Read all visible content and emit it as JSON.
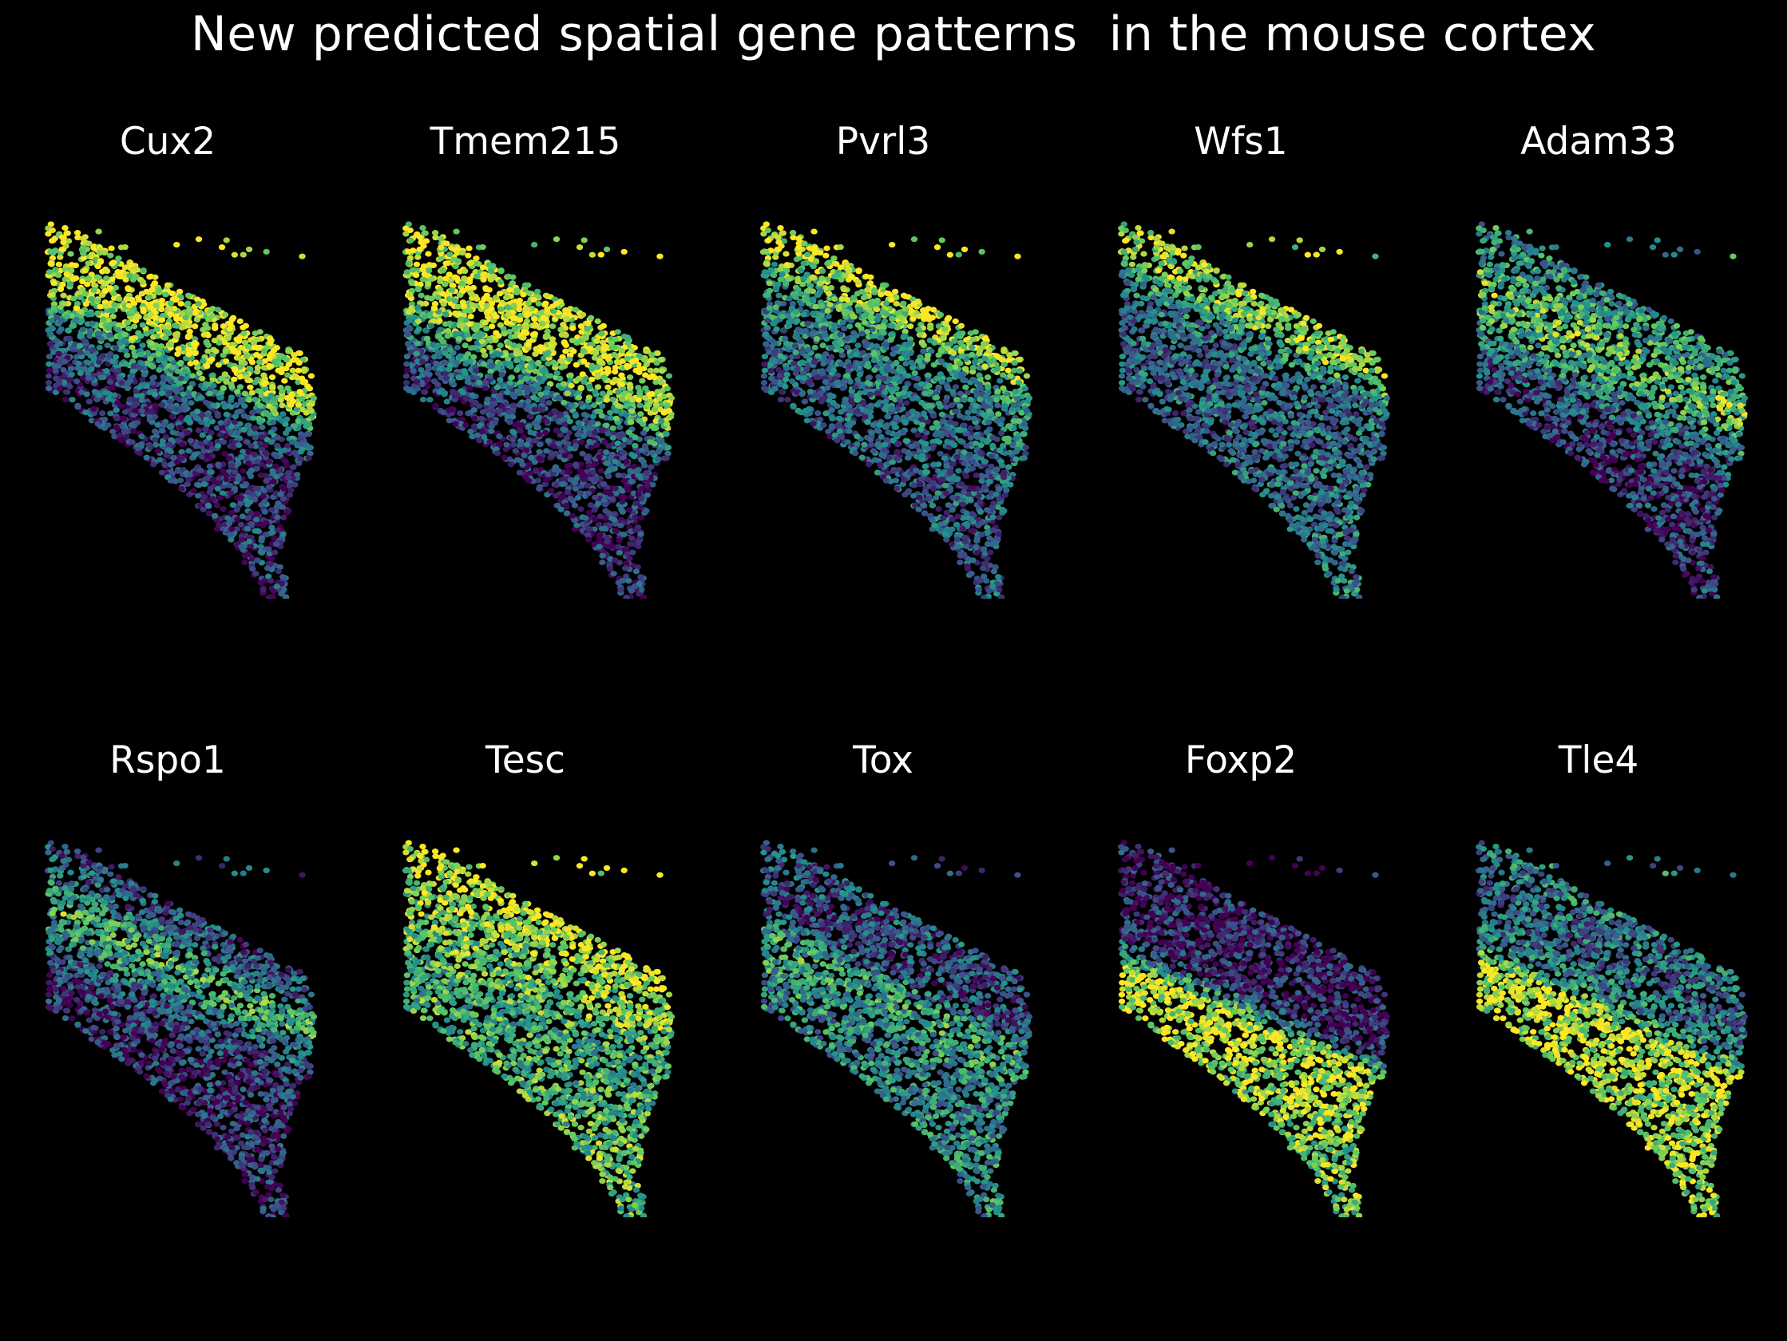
{
  "figure": {
    "title": "New predicted spatial gene patterns  in the mouse cortex",
    "background": "#000000",
    "colormap": "viridis",
    "colormap_stops": [
      "#440154",
      "#3b528b",
      "#21918c",
      "#5ec962",
      "#fde725"
    ]
  },
  "chart_data": {
    "type": "scatter",
    "description": "spatial scatter of cells colored by predicted expression (0 = low, 1 = high)",
    "panels": [
      {
        "title": "Cux2",
        "profile": [
          0.95,
          0.95,
          0.85,
          0.45,
          0.25,
          0.2,
          0.2,
          0.2
        ],
        "mode": "layers",
        "row": 0
      },
      {
        "title": "Tmem215",
        "profile": [
          0.9,
          0.95,
          0.9,
          0.6,
          0.3,
          0.2,
          0.15,
          0.15
        ],
        "mode": "layers",
        "row": 0
      },
      {
        "title": "Pvrl3",
        "profile": [
          0.95,
          0.75,
          0.5,
          0.45,
          0.35,
          0.3,
          0.3,
          0.3
        ],
        "mode": "layers",
        "row": 0
      },
      {
        "title": "Wfs1",
        "profile": [
          0.85,
          0.8,
          0.4,
          0.35,
          0.35,
          0.35,
          0.35,
          0.4
        ],
        "mode": "layers",
        "row": 0
      },
      {
        "title": "Adam33",
        "profile": [
          0.5,
          0.55,
          0.75,
          0.6,
          0.35,
          0.2,
          0.15,
          0.2
        ],
        "mode": "layers",
        "row": 0
      },
      {
        "title": "Rspo1",
        "profile": [
          0.25,
          0.35,
          0.7,
          0.45,
          0.2,
          0.15,
          0.15,
          0.15
        ],
        "mode": "layers",
        "row": 1
      },
      {
        "title": "Tesc",
        "profile": [
          0.95,
          0.85,
          0.75,
          0.7,
          0.6,
          0.65,
          0.65,
          0.7
        ],
        "mode": "layers",
        "row": 1
      },
      {
        "title": "Tox",
        "profile": [
          0.3,
          0.25,
          0.25,
          0.6,
          0.55,
          0.45,
          0.45,
          0.5
        ],
        "mode": "layers",
        "row": 1
      },
      {
        "title": "Foxp2",
        "profile": [
          0.1,
          0.1,
          0.1,
          0.15,
          0.95,
          0.9,
          0.85,
          0.75
        ],
        "mode": "layers",
        "row": 1
      },
      {
        "title": "Tle4",
        "profile": [
          0.45,
          0.35,
          0.35,
          0.45,
          0.95,
          0.85,
          0.85,
          0.85
        ],
        "mode": "layers",
        "row": 1
      }
    ]
  }
}
